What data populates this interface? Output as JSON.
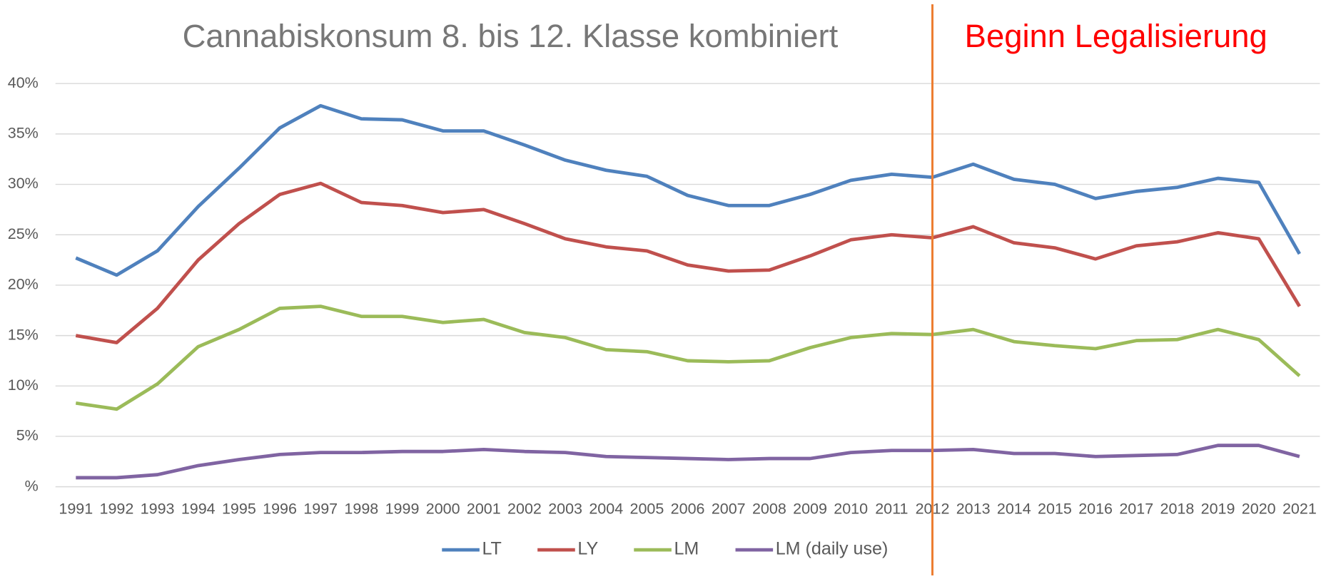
{
  "chart_data": {
    "type": "line",
    "title": "Cannabiskonsum 8. bis 12. Klasse kombiniert",
    "annotation": {
      "text": "Beginn Legalisierung",
      "at": "2012",
      "color": "#ff0000",
      "line_color": "#ed7d31"
    },
    "categories": [
      "1991",
      "1992",
      "1993",
      "1994",
      "1995",
      "1996",
      "1997",
      "1998",
      "1999",
      "2000",
      "2001",
      "2002",
      "2003",
      "2004",
      "2005",
      "2006",
      "2007",
      "2008",
      "2009",
      "2010",
      "2011",
      "2012",
      "2013",
      "2014",
      "2015",
      "2016",
      "2017",
      "2018",
      "2019",
      "2020",
      "2021"
    ],
    "series": [
      {
        "name": "LT",
        "color": "#4f81bd",
        "values": [
          22.7,
          21.0,
          23.4,
          27.8,
          31.6,
          35.6,
          37.8,
          36.5,
          36.4,
          35.3,
          35.3,
          33.9,
          32.4,
          31.4,
          30.8,
          28.9,
          27.9,
          27.9,
          29.0,
          30.4,
          31.0,
          30.7,
          32.0,
          30.5,
          30.0,
          28.6,
          29.3,
          29.7,
          30.6,
          30.2,
          23.1
        ]
      },
      {
        "name": "LY",
        "color": "#c0504d",
        "values": [
          15.0,
          14.3,
          17.7,
          22.5,
          26.1,
          29.0,
          30.1,
          28.2,
          27.9,
          27.2,
          27.5,
          26.1,
          24.6,
          23.8,
          23.4,
          22.0,
          21.4,
          21.5,
          22.9,
          24.5,
          25.0,
          24.7,
          25.8,
          24.2,
          23.7,
          22.6,
          23.9,
          24.3,
          25.2,
          24.6,
          17.9
        ]
      },
      {
        "name": "LM",
        "color": "#9bbb59",
        "values": [
          8.3,
          7.7,
          10.2,
          13.9,
          15.6,
          17.7,
          17.9,
          16.9,
          16.9,
          16.3,
          16.6,
          15.3,
          14.8,
          13.6,
          13.4,
          12.5,
          12.4,
          12.5,
          13.8,
          14.8,
          15.2,
          15.1,
          15.6,
          14.4,
          14.0,
          13.7,
          14.5,
          14.6,
          15.6,
          14.6,
          11.0
        ]
      },
      {
        "name": "LM (daily use)",
        "color": "#8064a2",
        "values": [
          0.9,
          0.9,
          1.2,
          2.1,
          2.7,
          3.2,
          3.4,
          3.4,
          3.5,
          3.5,
          3.7,
          3.5,
          3.4,
          3.0,
          2.9,
          2.8,
          2.7,
          2.8,
          2.8,
          3.4,
          3.6,
          3.6,
          3.7,
          3.3,
          3.3,
          3.0,
          3.1,
          3.2,
          4.1,
          4.1,
          3.0
        ]
      }
    ],
    "ylim": [
      0,
      40
    ],
    "yticks": [
      {
        "value": 0,
        "label": "%"
      },
      {
        "value": 5,
        "label": "5%"
      },
      {
        "value": 10,
        "label": "10%"
      },
      {
        "value": 15,
        "label": "15%"
      },
      {
        "value": 20,
        "label": "20%"
      },
      {
        "value": 25,
        "label": "25%"
      },
      {
        "value": 30,
        "label": "30%"
      },
      {
        "value": 35,
        "label": "35%"
      },
      {
        "value": 40,
        "label": "40%"
      }
    ],
    "grid": true,
    "legend": "bottom"
  }
}
